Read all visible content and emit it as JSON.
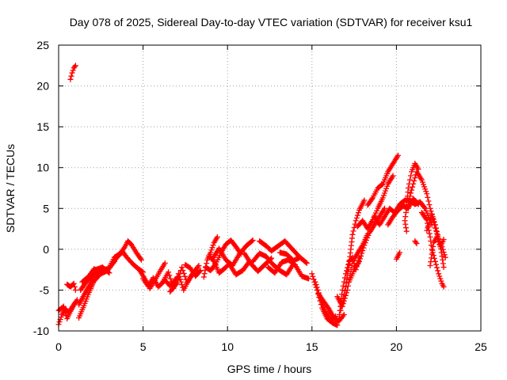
{
  "chart_data": {
    "type": "scatter",
    "title": "Day 078 of 2025, Sidereal Day-to-day VTEC variation (SDTVAR) for receiver ksu1",
    "xlabel": "GPS time / hours",
    "ylabel": "SDTVAR / TECUs",
    "xlim": [
      0,
      25
    ],
    "ylim": [
      -10,
      25
    ],
    "xticks": [
      "0",
      "5",
      "10",
      "15",
      "20",
      "25"
    ],
    "yticks": [
      "-10",
      "-5",
      "0",
      "5",
      "10",
      "15",
      "20",
      "25"
    ],
    "grid": true,
    "marker": "+",
    "color": "#ff0000",
    "series": [
      {
        "name": "ksu1",
        "tracks": [
          [
            [
              0.7,
              20.8
            ],
            [
              0.8,
              21.6
            ],
            [
              0.9,
              22.2
            ],
            [
              1.0,
              22.5
            ]
          ],
          [
            [
              0.0,
              -9.2
            ],
            [
              0.2,
              -8.0
            ],
            [
              0.4,
              -7.3
            ],
            [
              0.6,
              -7.8
            ],
            [
              0.8,
              -7.1
            ],
            [
              1.0,
              -6.5
            ]
          ],
          [
            [
              0.0,
              -7.5
            ],
            [
              0.3,
              -7.0
            ],
            [
              0.5,
              -8.5
            ],
            [
              0.7,
              -7.6
            ],
            [
              0.9,
              -6.8
            ],
            [
              1.1,
              -6.2
            ]
          ],
          [
            [
              0.5,
              -4.3
            ],
            [
              0.7,
              -4.6
            ],
            [
              0.9,
              -4.2
            ],
            [
              1.0,
              -5.0
            ]
          ],
          [
            [
              1.2,
              -8.4
            ],
            [
              1.5,
              -6.9
            ],
            [
              1.8,
              -5.3
            ],
            [
              2.1,
              -3.9
            ],
            [
              2.4,
              -3.2
            ]
          ],
          [
            [
              1.2,
              -6.8
            ],
            [
              1.5,
              -5.6
            ],
            [
              1.8,
              -4.5
            ],
            [
              2.1,
              -3.2
            ],
            [
              2.5,
              -2.6
            ],
            [
              2.9,
              -2.4
            ]
          ],
          [
            [
              1.3,
              -5.0
            ],
            [
              1.6,
              -4.1
            ],
            [
              1.9,
              -3.4
            ],
            [
              2.2,
              -2.5
            ],
            [
              2.6,
              -2.2
            ],
            [
              3.0,
              -2.9
            ]
          ],
          [
            [
              1.4,
              -4.0
            ],
            [
              1.8,
              -3.3
            ],
            [
              2.1,
              -2.4
            ],
            [
              2.5,
              -3.0
            ],
            [
              2.9,
              -2.6
            ],
            [
              3.3,
              -1.5
            ]
          ],
          [
            [
              3.0,
              -2.2
            ],
            [
              3.3,
              -1.0
            ],
            [
              3.6,
              -0.6
            ],
            [
              3.9,
              0.2
            ],
            [
              4.1,
              1.0
            ],
            [
              4.3,
              0.6
            ],
            [
              4.6,
              -0.4
            ],
            [
              4.9,
              -1.3
            ]
          ],
          [
            [
              3.2,
              -1.7
            ],
            [
              3.5,
              -0.9
            ],
            [
              3.8,
              -0.3
            ],
            [
              4.0,
              -0.9
            ],
            [
              4.3,
              -1.6
            ],
            [
              4.6,
              -2.2
            ],
            [
              5.0,
              -2.8
            ]
          ],
          [
            [
              4.8,
              -2.6
            ],
            [
              5.1,
              -3.6
            ],
            [
              5.4,
              -4.8
            ],
            [
              5.7,
              -3.8
            ],
            [
              6.0,
              -2.7
            ],
            [
              6.3,
              -1.7
            ]
          ],
          [
            [
              5.0,
              -3.6
            ],
            [
              5.3,
              -4.5
            ],
            [
              5.6,
              -3.5
            ],
            [
              5.9,
              -4.6
            ],
            [
              6.3,
              -3.8
            ],
            [
              6.6,
              -4.5
            ],
            [
              7.0,
              -3.5
            ]
          ],
          [
            [
              6.2,
              -3.9
            ],
            [
              6.5,
              -2.8
            ],
            [
              6.8,
              -4.8
            ],
            [
              7.1,
              -3.0
            ],
            [
              7.4,
              -5.0
            ],
            [
              7.7,
              -3.8
            ],
            [
              8.1,
              -2.5
            ]
          ],
          [
            [
              6.6,
              -5.2
            ],
            [
              7.0,
              -4.2
            ],
            [
              7.3,
              -2.2
            ],
            [
              7.6,
              -4.1
            ],
            [
              7.9,
              -3.1
            ],
            [
              8.3,
              -2.0
            ]
          ],
          [
            [
              7.5,
              -1.9
            ],
            [
              7.8,
              -2.3
            ],
            [
              8.1,
              -3.3
            ],
            [
              8.4,
              -2.6
            ]
          ],
          [
            [
              8.6,
              -3.4
            ],
            [
              8.8,
              -1.3
            ],
            [
              9.0,
              -0.4
            ],
            [
              9.2,
              0.8
            ],
            [
              9.4,
              1.5
            ]
          ],
          [
            [
              8.7,
              -2.2
            ],
            [
              9.0,
              -2.6
            ],
            [
              9.3,
              -1.8
            ],
            [
              9.6,
              -0.5
            ],
            [
              9.9,
              0.6
            ],
            [
              10.2,
              1.1
            ],
            [
              10.5,
              0.3
            ],
            [
              10.8,
              -0.6
            ]
          ],
          [
            [
              8.9,
              -0.8
            ],
            [
              9.2,
              -1.5
            ],
            [
              9.5,
              -2.9
            ],
            [
              9.8,
              -2.4
            ],
            [
              10.1,
              -1.8
            ],
            [
              10.5,
              -3.1
            ],
            [
              10.9,
              -2.6
            ],
            [
              11.3,
              -1.5
            ]
          ],
          [
            [
              9.1,
              -1.2
            ],
            [
              9.5,
              0.1
            ],
            [
              9.9,
              -1.3
            ],
            [
              10.3,
              -2.0
            ],
            [
              10.7,
              -0.6
            ],
            [
              11.1,
              0.4
            ],
            [
              11.5,
              1.1
            ]
          ],
          [
            [
              11.0,
              -0.5
            ],
            [
              11.4,
              -1.8
            ],
            [
              11.8,
              -2.7
            ],
            [
              12.2,
              -1.9
            ],
            [
              12.6,
              -1.1
            ]
          ],
          [
            [
              11.5,
              -1.5
            ],
            [
              11.9,
              -0.5
            ],
            [
              12.3,
              -0.9
            ],
            [
              12.7,
              -1.9
            ],
            [
              13.1,
              -2.6
            ],
            [
              13.5,
              -3.1
            ],
            [
              13.9,
              -1.8
            ]
          ],
          [
            [
              11.9,
              1.0
            ],
            [
              12.3,
              0.4
            ],
            [
              12.6,
              -0.2
            ],
            [
              13.0,
              0.4
            ],
            [
              13.4,
              1.0
            ],
            [
              13.8,
              0.1
            ],
            [
              14.2,
              -0.8
            ]
          ],
          [
            [
              12.4,
              -2.2
            ],
            [
              12.8,
              -2.9
            ],
            [
              13.2,
              -1.6
            ],
            [
              13.6,
              -1.3
            ],
            [
              14.0,
              -1.9
            ],
            [
              14.4,
              -3.3
            ],
            [
              14.8,
              -3.6
            ]
          ],
          [
            [
              13.1,
              -0.4
            ],
            [
              13.5,
              -0.6
            ],
            [
              13.9,
              -1.4
            ],
            [
              14.3,
              -1.0
            ],
            [
              14.7,
              -1.7
            ]
          ],
          [
            [
              15.0,
              -3.0
            ],
            [
              15.3,
              -5.0
            ],
            [
              15.6,
              -7.2
            ],
            [
              15.9,
              -8.5
            ],
            [
              16.2,
              -9.0
            ],
            [
              16.5,
              -9.3
            ]
          ],
          [
            [
              15.2,
              -4.0
            ],
            [
              15.5,
              -6.0
            ],
            [
              15.8,
              -7.6
            ],
            [
              16.1,
              -8.7
            ],
            [
              16.4,
              -8.2
            ]
          ],
          [
            [
              15.4,
              -5.5
            ],
            [
              15.7,
              -6.4
            ],
            [
              16.0,
              -7.3
            ],
            [
              16.3,
              -8.4
            ],
            [
              16.6,
              -8.8
            ],
            [
              16.9,
              -8.0
            ]
          ],
          [
            [
              16.5,
              -5.8
            ],
            [
              16.8,
              -7.0
            ],
            [
              17.1,
              -5.0
            ],
            [
              17.4,
              -1.5
            ],
            [
              17.7,
              -0.5
            ],
            [
              18.0,
              0.5
            ],
            [
              18.3,
              1.9
            ]
          ],
          [
            [
              16.6,
              -8.5
            ],
            [
              16.8,
              -5.0
            ],
            [
              17.0,
              -3.0
            ],
            [
              17.2,
              -1.5
            ],
            [
              17.4,
              -1.0
            ],
            [
              17.6,
              -2.5
            ],
            [
              17.8,
              -1.0
            ]
          ],
          [
            [
              16.7,
              -7.5
            ],
            [
              17.0,
              -4.6
            ],
            [
              17.2,
              -1.8
            ],
            [
              17.4,
              1.8
            ],
            [
              17.6,
              3.5
            ],
            [
              17.8,
              4.8
            ],
            [
              18.1,
              6.0
            ]
          ],
          [
            [
              17.2,
              -4.0
            ],
            [
              17.5,
              -2.5
            ],
            [
              17.8,
              -1.5
            ],
            [
              18.1,
              0.5
            ],
            [
              18.4,
              2.0
            ],
            [
              18.7,
              3.0
            ],
            [
              19.0,
              4.0
            ],
            [
              19.3,
              5.0
            ]
          ],
          [
            [
              17.7,
              2.8
            ],
            [
              18.0,
              3.5
            ],
            [
              18.3,
              2.5
            ],
            [
              18.6,
              3.6
            ],
            [
              18.9,
              5.0
            ],
            [
              19.2,
              6.3
            ],
            [
              19.5,
              8.0
            ],
            [
              19.8,
              9.0
            ]
          ],
          [
            [
              18.3,
              5.4
            ],
            [
              18.6,
              6.3
            ],
            [
              18.9,
              7.5
            ],
            [
              19.2,
              8.0
            ],
            [
              19.5,
              9.5
            ],
            [
              19.8,
              10.5
            ],
            [
              20.1,
              11.5
            ]
          ],
          [
            [
              18.7,
              4.0
            ],
            [
              19.0,
              3.0
            ],
            [
              19.3,
              4.0
            ],
            [
              19.6,
              5.0
            ],
            [
              19.9,
              4.5
            ],
            [
              20.2,
              5.5
            ],
            [
              20.5,
              6.0
            ],
            [
              20.8,
              6.0
            ],
            [
              21.1,
              5.5
            ],
            [
              21.4,
              5.8
            ],
            [
              21.7,
              5.0
            ],
            [
              22.1,
              3.0
            ]
          ],
          [
            [
              19.5,
              3.0
            ],
            [
              19.8,
              4.0
            ],
            [
              20.1,
              4.8
            ],
            [
              20.4,
              5.3
            ],
            [
              20.7,
              5.0
            ],
            [
              21.0,
              6.2
            ],
            [
              21.3,
              5.5
            ]
          ],
          [
            [
              20.0,
              -1.2
            ],
            [
              20.1,
              -0.8
            ],
            [
              20.2,
              -0.4
            ]
          ],
          [
            [
              20.6,
              2.2
            ],
            [
              20.5,
              3.5
            ],
            [
              20.6,
              5.0
            ],
            [
              20.7,
              7.5
            ],
            [
              20.9,
              9.5
            ],
            [
              21.1,
              10.5
            ],
            [
              21.3,
              9.8
            ]
          ],
          [
            [
              20.8,
              6.5
            ],
            [
              21.0,
              8.0
            ],
            [
              21.2,
              9.5
            ],
            [
              21.5,
              8.5
            ],
            [
              21.8,
              6.8
            ],
            [
              22.0,
              5.0
            ],
            [
              22.3,
              3.0
            ],
            [
              22.6,
              0.5
            ],
            [
              22.8,
              -2.2
            ]
          ],
          [
            [
              21.5,
              4.5
            ],
            [
              21.8,
              3.6
            ],
            [
              22.0,
              1.5
            ],
            [
              22.1,
              0.0
            ],
            [
              22.3,
              -1.5
            ],
            [
              22.5,
              -3.0
            ],
            [
              22.7,
              -4.2
            ],
            [
              22.8,
              -4.6
            ]
          ],
          [
            [
              21.8,
              2.3
            ],
            [
              22.1,
              4.2
            ],
            [
              22.3,
              2.6
            ],
            [
              22.5,
              1.2
            ],
            [
              22.7,
              0.3
            ],
            [
              22.9,
              -1.0
            ]
          ],
          [
            [
              22.0,
              -2.0
            ],
            [
              22.2,
              0.8
            ],
            [
              22.4,
              1.5
            ],
            [
              22.6,
              0.3
            ],
            [
              22.8,
              1.2
            ]
          ],
          [
            [
              21.1,
              1.0
            ],
            [
              21.2,
              0.7
            ]
          ]
        ]
      }
    ]
  }
}
